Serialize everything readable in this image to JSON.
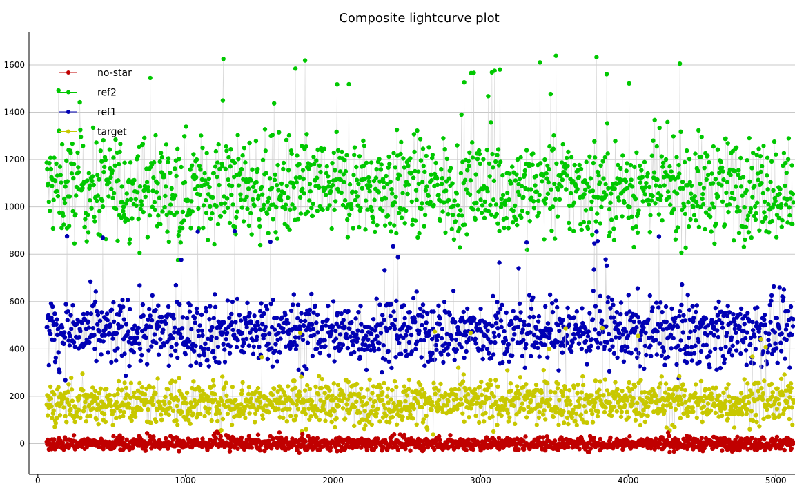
{
  "chart_data": {
    "type": "scatter",
    "title": "Composite lightcurve plot",
    "xlabel": "",
    "ylabel": "",
    "xlim": [
      -60,
      5130
    ],
    "ylim": [
      -130,
      1740
    ],
    "x_ticks": [
      0,
      1000,
      2000,
      3000,
      4000,
      5000
    ],
    "y_ticks": [
      0,
      200,
      400,
      600,
      800,
      1000,
      1200,
      1400,
      1600
    ],
    "grid": "horizontal",
    "legend_position": "top-left",
    "x_range": [
      60,
      5120
    ],
    "series": [
      {
        "name": "no-star",
        "color": "#c00000",
        "mean": 0,
        "spread": 28,
        "outlier_max": 50
      },
      {
        "name": "ref2",
        "color": "#00c800",
        "mean": 1080,
        "spread": 210,
        "outlier_max": 1645
      },
      {
        "name": "ref1",
        "color": "#0000b4",
        "mean": 470,
        "spread": 140,
        "outlier_max": 900
      },
      {
        "name": "target",
        "color": "#c8c800",
        "mean": 175,
        "spread": 95,
        "outlier_max": 490
      }
    ]
  }
}
